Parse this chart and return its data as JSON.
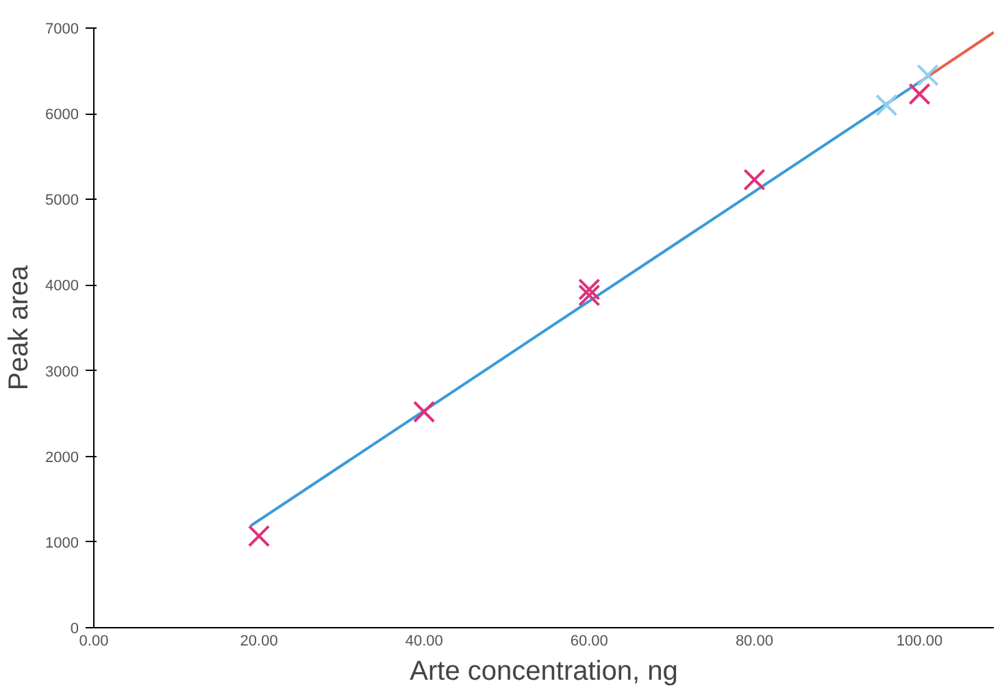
{
  "chart_data": {
    "type": "scatter",
    "xlabel": "Arte concentration, ng",
    "ylabel": "Peak area",
    "xlim": [
      0,
      109
    ],
    "ylim": [
      0,
      7000
    ],
    "xticks": [
      {
        "value": 0,
        "label": "0.00"
      },
      {
        "value": 20,
        "label": "20.00"
      },
      {
        "value": 40,
        "label": "40.00"
      },
      {
        "value": 60,
        "label": "60.00"
      },
      {
        "value": 80,
        "label": "80.00"
      },
      {
        "value": 100,
        "label": "100.00"
      }
    ],
    "yticks": [
      0,
      1000,
      2000,
      3000,
      4000,
      5000,
      6000,
      7000
    ],
    "grid": false,
    "marker": "cross",
    "series": [
      {
        "type": "line",
        "color": "#3a9ad9",
        "x": [
          19,
          100
        ],
        "values": [
          1190,
          6370
        ],
        "marker": "none"
      },
      {
        "type": "line",
        "color": "#e8604c",
        "x": [
          100,
          109
        ],
        "values": [
          6370,
          6950
        ],
        "marker": "none"
      },
      {
        "color": "#e0307a",
        "x": [
          20,
          40,
          60,
          60,
          80,
          100
        ],
        "values": [
          1070,
          2520,
          3950,
          3880,
          5230,
          6230
        ]
      },
      {
        "color": "#8fd0ee",
        "x": [
          96,
          101
        ],
        "values": [
          6100,
          6450
        ]
      }
    ]
  }
}
